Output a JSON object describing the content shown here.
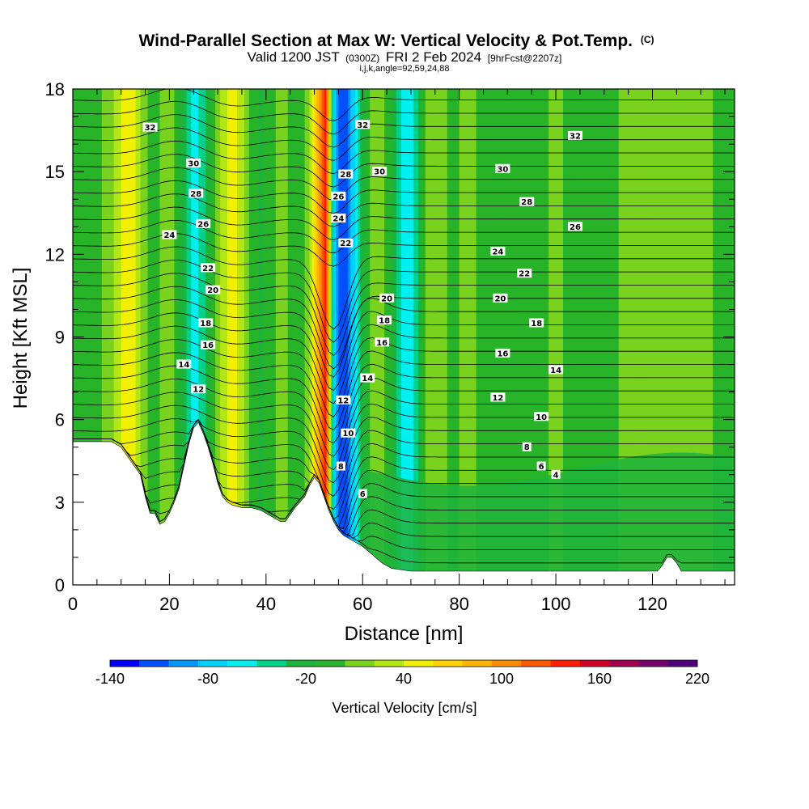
{
  "header": {
    "title_main": "Wind-Parallel Section at Max W: Vertical Velocity & Pot.Temp.",
    "title_mark": "(C)",
    "valid_prefix": "Valid 1200 JST",
    "valid_utc": "(0300Z)",
    "valid_date": "FRI 2 Feb 2024",
    "forecast_tag": "[9hrFcst@2207z]",
    "index_line": "i,j,k,angle=92,59,24,88"
  },
  "chart_data": {
    "type": "heatmap",
    "xlabel": "Distance [nm]",
    "ylabel": "Height [Kft MSL]",
    "xlim": [
      0,
      137
    ],
    "ylim": [
      0,
      18
    ],
    "x_ticks": [
      0,
      20,
      40,
      60,
      80,
      100,
      120
    ],
    "y_ticks": [
      0,
      3,
      6,
      9,
      12,
      15,
      18
    ],
    "colorbar": {
      "title": "Vertical Velocity [cm/s]",
      "min": -140,
      "max": 220,
      "step": 20,
      "tick_labels": [
        "-140",
        "-80",
        "-20",
        "40",
        "100",
        "160",
        "220"
      ],
      "tick_values": [
        -140,
        -80,
        -20,
        40,
        100,
        160,
        220
      ],
      "colors": [
        "#0000ff",
        "#0050ff",
        "#0096ff",
        "#00d2ff",
        "#00f0f0",
        "#00d28c",
        "#1eb43c",
        "#28b428",
        "#78d21e",
        "#b4e614",
        "#f0f000",
        "#ffd200",
        "#ffb400",
        "#ff8c00",
        "#ff5a00",
        "#ff1e00",
        "#d20028",
        "#a00050",
        "#78006e",
        "#50007d"
      ]
    },
    "terrain": [
      [
        0,
        5.2
      ],
      [
        8,
        5.2
      ],
      [
        10,
        5.0
      ],
      [
        12,
        4.5
      ],
      [
        14,
        4.0
      ],
      [
        15,
        3.2
      ],
      [
        16,
        2.6
      ],
      [
        17,
        2.6
      ],
      [
        18,
        2.2
      ],
      [
        19,
        2.3
      ],
      [
        20,
        2.6
      ],
      [
        21,
        3.0
      ],
      [
        22,
        3.5
      ],
      [
        23,
        4.3
      ],
      [
        24,
        5.1
      ],
      [
        25,
        5.7
      ],
      [
        26,
        5.9
      ],
      [
        27,
        5.5
      ],
      [
        28,
        5.0
      ],
      [
        29,
        4.4
      ],
      [
        30,
        3.7
      ],
      [
        31,
        3.2
      ],
      [
        32,
        3.0
      ],
      [
        33,
        2.9
      ],
      [
        35,
        2.8
      ],
      [
        37,
        2.8
      ],
      [
        39,
        2.7
      ],
      [
        41,
        2.5
      ],
      [
        43,
        2.3
      ],
      [
        44,
        2.3
      ],
      [
        46,
        2.8
      ],
      [
        48,
        3.2
      ],
      [
        49,
        3.6
      ],
      [
        50,
        3.9
      ],
      [
        51,
        3.7
      ],
      [
        52,
        3.2
      ],
      [
        53,
        2.7
      ],
      [
        54,
        2.3
      ],
      [
        55,
        2.0
      ],
      [
        56,
        1.8
      ],
      [
        58,
        1.6
      ],
      [
        60,
        1.4
      ],
      [
        62,
        1.1
      ],
      [
        64,
        0.8
      ],
      [
        66,
        0.6
      ],
      [
        70,
        0.5
      ],
      [
        80,
        0.5
      ],
      [
        100,
        0.5
      ],
      [
        121,
        0.5
      ],
      [
        122,
        0.7
      ],
      [
        123,
        1.0
      ],
      [
        124,
        1.0
      ],
      [
        125,
        0.8
      ],
      [
        126,
        0.5
      ],
      [
        137,
        0.5
      ]
    ],
    "w_columns": [
      {
        "x": 0,
        "w": 20
      },
      {
        "x": 3,
        "w": 5
      },
      {
        "x": 6,
        "w": 20
      },
      {
        "x": 9,
        "w": 45
      },
      {
        "x": 11,
        "w": 80
      },
      {
        "x": 13,
        "w": 60
      },
      {
        "x": 15,
        "w": 25
      },
      {
        "x": 17,
        "w": 5
      },
      {
        "x": 19,
        "w": 40
      },
      {
        "x": 21,
        "w": 20
      },
      {
        "x": 23,
        "w": -15
      },
      {
        "x": 25,
        "w": -55
      },
      {
        "x": 27,
        "w": -30
      },
      {
        "x": 29,
        "w": 10
      },
      {
        "x": 31,
        "w": 45
      },
      {
        "x": 33,
        "w": 70
      },
      {
        "x": 35,
        "w": 45
      },
      {
        "x": 37,
        "w": 15
      },
      {
        "x": 39,
        "w": -5
      },
      {
        "x": 41,
        "w": 10
      },
      {
        "x": 43,
        "w": 30
      },
      {
        "x": 45,
        "w": 15
      },
      {
        "x": 47,
        "w": 5
      },
      {
        "x": 49,
        "w": 40
      },
      {
        "x": 51,
        "w": 130
      },
      {
        "x": 52.5,
        "w": 175
      },
      {
        "x": 54,
        "w": -60
      },
      {
        "x": 55.5,
        "w": -120
      },
      {
        "x": 57,
        "w": -100
      },
      {
        "x": 59,
        "w": -40
      },
      {
        "x": 61,
        "w": 15
      },
      {
        "x": 63,
        "w": 40
      },
      {
        "x": 65,
        "w": 15
      },
      {
        "x": 67,
        "w": -20
      },
      {
        "x": 69,
        "w": -60
      },
      {
        "x": 71,
        "w": -30
      },
      {
        "x": 73,
        "w": 20
      },
      {
        "x": 75,
        "w": 40
      },
      {
        "x": 78,
        "w": 15
      },
      {
        "x": 82,
        "w": 25
      },
      {
        "x": 86,
        "w": 10
      },
      {
        "x": 90,
        "w": 20
      },
      {
        "x": 95,
        "w": 5
      },
      {
        "x": 100,
        "w": 25
      },
      {
        "x": 105,
        "w": 10
      },
      {
        "x": 110,
        "w": 5
      },
      {
        "x": 115,
        "w": 30
      },
      {
        "x": 120,
        "w": 40
      },
      {
        "x": 125,
        "w": 20
      },
      {
        "x": 130,
        "w": 35
      },
      {
        "x": 135,
        "w": 5
      }
    ],
    "contour_labels": [
      {
        "text": "32",
        "x": 16,
        "y": 16.6
      },
      {
        "text": "30",
        "x": 25,
        "y": 15.3
      },
      {
        "text": "28",
        "x": 25.5,
        "y": 14.2
      },
      {
        "text": "26",
        "x": 27,
        "y": 13.1
      },
      {
        "text": "24",
        "x": 20,
        "y": 12.7
      },
      {
        "text": "22",
        "x": 28,
        "y": 11.5
      },
      {
        "text": "20",
        "x": 29,
        "y": 10.7
      },
      {
        "text": "18",
        "x": 27.5,
        "y": 9.5
      },
      {
        "text": "16",
        "x": 28,
        "y": 8.7
      },
      {
        "text": "14",
        "x": 23,
        "y": 8.0
      },
      {
        "text": "12",
        "x": 26,
        "y": 7.1
      },
      {
        "text": "32",
        "x": 60,
        "y": 16.7
      },
      {
        "text": "30",
        "x": 63.5,
        "y": 15.0
      },
      {
        "text": "28",
        "x": 56.5,
        "y": 14.9
      },
      {
        "text": "26",
        "x": 55,
        "y": 14.1
      },
      {
        "text": "24",
        "x": 55,
        "y": 13.3
      },
      {
        "text": "22",
        "x": 56.5,
        "y": 12.4
      },
      {
        "text": "20",
        "x": 65,
        "y": 10.4
      },
      {
        "text": "18",
        "x": 64.5,
        "y": 9.6
      },
      {
        "text": "16",
        "x": 64,
        "y": 8.8
      },
      {
        "text": "14",
        "x": 61,
        "y": 7.5
      },
      {
        "text": "12",
        "x": 56,
        "y": 6.7
      },
      {
        "text": "10",
        "x": 57,
        "y": 5.5
      },
      {
        "text": "8",
        "x": 55.5,
        "y": 4.3
      },
      {
        "text": "6",
        "x": 60,
        "y": 3.3
      },
      {
        "text": "32",
        "x": 104,
        "y": 16.3
      },
      {
        "text": "30",
        "x": 89,
        "y": 15.1
      },
      {
        "text": "28",
        "x": 94,
        "y": 13.9
      },
      {
        "text": "26",
        "x": 104,
        "y": 13.0
      },
      {
        "text": "24",
        "x": 88,
        "y": 12.1
      },
      {
        "text": "22",
        "x": 93.5,
        "y": 11.3
      },
      {
        "text": "20",
        "x": 88.5,
        "y": 10.4
      },
      {
        "text": "18",
        "x": 96,
        "y": 9.5
      },
      {
        "text": "16",
        "x": 89,
        "y": 8.4
      },
      {
        "text": "14",
        "x": 100,
        "y": 7.8
      },
      {
        "text": "12",
        "x": 88,
        "y": 6.8
      },
      {
        "text": "10",
        "x": 97,
        "y": 6.1
      },
      {
        "text": "8",
        "x": 94,
        "y": 5.0
      },
      {
        "text": "6",
        "x": 97,
        "y": 4.3
      },
      {
        "text": "4",
        "x": 100,
        "y": 4.0
      }
    ]
  }
}
